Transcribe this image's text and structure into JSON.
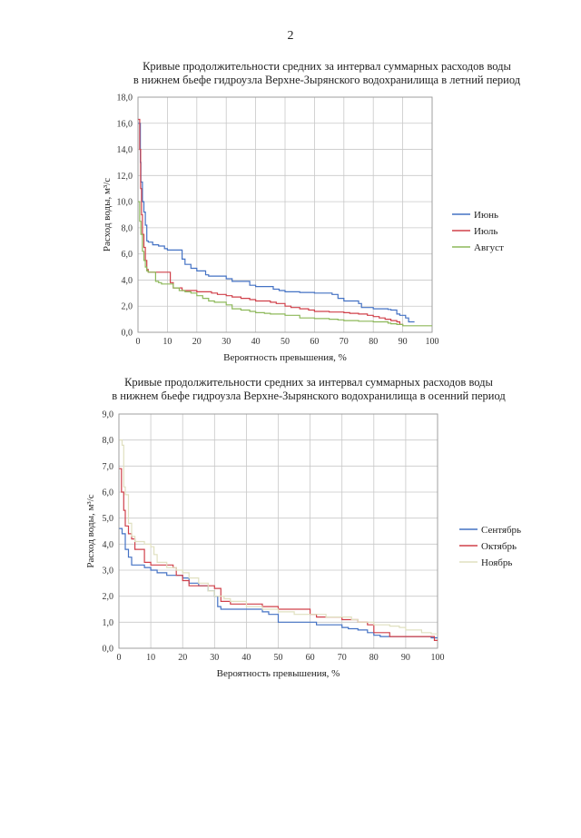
{
  "page_number": "2",
  "chart_data": [
    {
      "type": "line",
      "title_line1": "Кривые продолжительности средних за интервал суммарных расходов воды",
      "title_line2": "в нижнем бьефе гидроузла Верхне-Зырянского водохранилища в летний период",
      "xlabel": "Вероятность превышения, %",
      "ylabel": "Расход воды, м³/с",
      "xlim": [
        0,
        100
      ],
      "ylim": [
        0,
        18
      ],
      "xticks": [
        "0",
        "10",
        "20",
        "30",
        "40",
        "50",
        "60",
        "70",
        "80",
        "90",
        "100"
      ],
      "yticks": [
        "0,0",
        "2,0",
        "4,0",
        "6,0",
        "8,0",
        "10,0",
        "12,0",
        "14,0",
        "16,0",
        "18,0"
      ],
      "legend_position": "right",
      "series": [
        {
          "name": "Июнь",
          "color": "#4472c4",
          "x": [
            0.3,
            0.8,
            1,
            1.5,
            2,
            2.5,
            3,
            3.5,
            5,
            7,
            9,
            10,
            14,
            15,
            16,
            18,
            20,
            23,
            24,
            30,
            32,
            38,
            40,
            46,
            48,
            50,
            55,
            60,
            65,
            66,
            68,
            70,
            72,
            74,
            75,
            76,
            80,
            85,
            86,
            88,
            89,
            91,
            92,
            93,
            94
          ],
          "y": [
            16,
            13,
            11.5,
            10,
            9.2,
            8.2,
            7,
            6.9,
            6.7,
            6.6,
            6.4,
            6.3,
            6.3,
            5.6,
            5.2,
            4.9,
            4.7,
            4.4,
            4.3,
            4.1,
            3.9,
            3.6,
            3.5,
            3.3,
            3.2,
            3.1,
            3.05,
            3.0,
            3.0,
            2.9,
            2.6,
            2.4,
            2.4,
            2.4,
            2.2,
            1.9,
            1.8,
            1.75,
            1.7,
            1.4,
            1.3,
            1.1,
            0.8,
            0.8,
            0.8
          ]
        },
        {
          "name": "Июль",
          "color": "#d0404a",
          "x": [
            0.3,
            0.6,
            0.9,
            1.2,
            1.5,
            2,
            2.5,
            3,
            3.5,
            4,
            5,
            8,
            10,
            11,
            12,
            15,
            20,
            25,
            27,
            30,
            32,
            35,
            38,
            40,
            45,
            47,
            50,
            52,
            55,
            58,
            60,
            65,
            70,
            72,
            75,
            78,
            80,
            82,
            84,
            86,
            88,
            89,
            90
          ],
          "y": [
            16.3,
            14,
            11,
            9,
            7.5,
            6.5,
            5.5,
            4.8,
            4.6,
            4.6,
            4.6,
            4.6,
            4.6,
            3.8,
            3.4,
            3.2,
            3.1,
            3.0,
            2.9,
            2.8,
            2.7,
            2.6,
            2.5,
            2.4,
            2.3,
            2.2,
            2.0,
            1.9,
            1.8,
            1.7,
            1.6,
            1.55,
            1.5,
            1.45,
            1.4,
            1.3,
            1.2,
            1.1,
            1.0,
            0.9,
            0.8,
            0.6,
            0.5
          ]
        },
        {
          "name": "Август",
          "color": "#8db85a",
          "x": [
            0.3,
            0.6,
            1,
            1.5,
            2,
            2.5,
            3,
            3.5,
            4,
            5,
            6,
            7,
            8,
            10,
            12,
            14,
            16,
            18,
            20,
            22,
            24,
            26,
            30,
            32,
            35,
            38,
            40,
            43,
            45,
            50,
            55,
            60,
            65,
            68,
            70,
            75,
            80,
            85,
            86,
            88,
            90,
            95,
            100
          ],
          "y": [
            10,
            8.5,
            7.5,
            6.2,
            5.5,
            5.0,
            4.7,
            4.6,
            4.6,
            4.6,
            3.9,
            3.8,
            3.7,
            3.7,
            3.4,
            3.2,
            3.1,
            3.0,
            2.8,
            2.6,
            2.4,
            2.3,
            2.1,
            1.8,
            1.7,
            1.6,
            1.5,
            1.45,
            1.4,
            1.3,
            1.1,
            1.05,
            1.0,
            0.95,
            0.9,
            0.85,
            0.8,
            0.7,
            0.65,
            0.6,
            0.5,
            0.5,
            0.5
          ]
        }
      ]
    },
    {
      "type": "line",
      "title_line1": "Кривые продолжительности средних за интервал суммарных расходов воды",
      "title_line2": "в нижнем бьефе гидроузла Верхне-Зырянского водохранилища в осенний период",
      "xlabel": "Вероятность превышения, %",
      "ylabel": "Расход воды, м³/с",
      "xlim": [
        0,
        100
      ],
      "ylim": [
        0,
        9
      ],
      "xticks": [
        "0",
        "10",
        "20",
        "30",
        "40",
        "50",
        "60",
        "70",
        "80",
        "90",
        "100"
      ],
      "yticks": [
        "0,0",
        "1,0",
        "2,0",
        "3,0",
        "4,0",
        "5,0",
        "6,0",
        "7,0",
        "8,0",
        "9,0"
      ],
      "legend_position": "right",
      "series": [
        {
          "name": "Сентябрь",
          "color": "#4472c4",
          "x": [
            0.3,
            1,
            2,
            3,
            4,
            6,
            8,
            10,
            12,
            15,
            18,
            20,
            22,
            25,
            28,
            30,
            31,
            32,
            35,
            40,
            45,
            47,
            50,
            55,
            60,
            62,
            65,
            68,
            70,
            72,
            75,
            78,
            80,
            82,
            85,
            90,
            95,
            98,
            100
          ],
          "y": [
            4.6,
            4.4,
            3.8,
            3.5,
            3.2,
            3.2,
            3.1,
            3.0,
            2.9,
            2.8,
            2.8,
            2.7,
            2.5,
            2.4,
            2.2,
            2.0,
            1.6,
            1.5,
            1.5,
            1.5,
            1.4,
            1.3,
            1.0,
            1.0,
            1.0,
            0.9,
            0.9,
            0.9,
            0.8,
            0.75,
            0.7,
            0.6,
            0.5,
            0.45,
            0.45,
            0.45,
            0.45,
            0.4,
            0.4
          ]
        },
        {
          "name": "Октябрь",
          "color": "#d0404a",
          "x": [
            0.3,
            0.8,
            1.5,
            2,
            3,
            4,
            5,
            6,
            8,
            10,
            12,
            15,
            17,
            18,
            20,
            22,
            25,
            28,
            30,
            32,
            35,
            38,
            40,
            45,
            50,
            55,
            60,
            62,
            65,
            70,
            75,
            78,
            80,
            85,
            90,
            95,
            98,
            99,
            100
          ],
          "y": [
            6.9,
            6.0,
            5.3,
            4.7,
            4.4,
            4.2,
            3.8,
            3.8,
            3.3,
            3.2,
            3.2,
            3.2,
            3.1,
            2.8,
            2.6,
            2.4,
            2.4,
            2.4,
            2.3,
            1.8,
            1.7,
            1.7,
            1.7,
            1.6,
            1.5,
            1.5,
            1.3,
            1.2,
            1.2,
            1.1,
            1.0,
            0.9,
            0.6,
            0.45,
            0.45,
            0.45,
            0.45,
            0.3,
            0.3
          ]
        },
        {
          "name": "Ноябрь",
          "color": "#e0e0c0",
          "x": [
            0.3,
            1,
            1.5,
            2,
            3,
            4,
            5,
            8,
            10,
            11,
            12,
            15,
            18,
            20,
            22,
            25,
            28,
            30,
            33,
            35,
            40,
            45,
            50,
            55,
            60,
            65,
            70,
            73,
            75,
            78,
            80,
            82,
            85,
            88,
            90,
            95,
            98,
            100
          ],
          "y": [
            8.0,
            7.8,
            6.2,
            5.9,
            4.8,
            4.3,
            4.1,
            4.0,
            3.9,
            3.6,
            3.3,
            3.1,
            3.0,
            2.9,
            2.7,
            2.5,
            2.2,
            2.0,
            1.9,
            1.8,
            1.6,
            1.5,
            1.4,
            1.3,
            1.3,
            1.2,
            1.2,
            1.1,
            1.0,
            1.0,
            0.9,
            0.9,
            0.85,
            0.8,
            0.7,
            0.6,
            0.55,
            0.55
          ]
        }
      ]
    }
  ]
}
